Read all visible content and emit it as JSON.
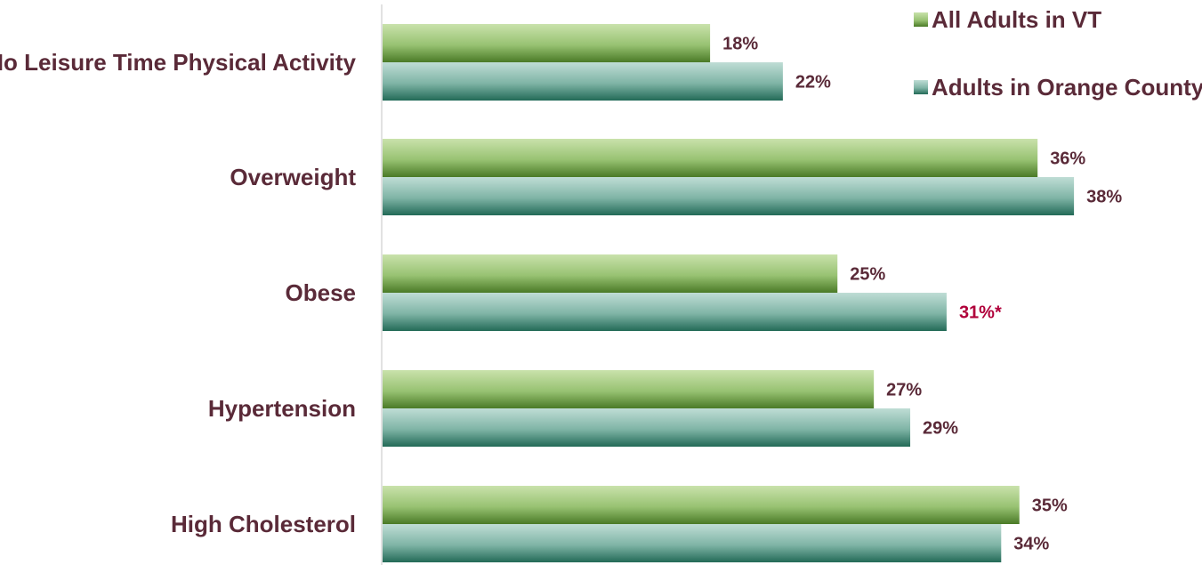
{
  "chart_data": {
    "type": "bar",
    "orientation": "horizontal",
    "title": "",
    "xlabel": "",
    "ylabel": "",
    "xlim": [
      0,
      40
    ],
    "grid": false,
    "legend_position": "top-right",
    "categories": [
      "No Leisure Time Physical Activity",
      "Overweight",
      "Obese",
      "Hypertension",
      "High Cholesterol"
    ],
    "series": [
      {
        "name": "All Adults in VT",
        "values": [
          18,
          36,
          25,
          27,
          35
        ],
        "labels": [
          "18%",
          "36%",
          "25%",
          "27%",
          "35%"
        ],
        "color_light": "#c7e0a8",
        "color_dark": "#4e7f2a"
      },
      {
        "name": "Adults in Orange County",
        "values": [
          22,
          38,
          31,
          29,
          34
        ],
        "labels": [
          "22%",
          "38%",
          "31%*",
          "29%",
          "34%"
        ],
        "color_light": "#b5d8d0",
        "color_dark": "#2a6e5c"
      }
    ],
    "label_color": "#5a2a38",
    "highlight_color": "#b0003a",
    "highlight_labels": [
      [
        1,
        2
      ]
    ]
  }
}
